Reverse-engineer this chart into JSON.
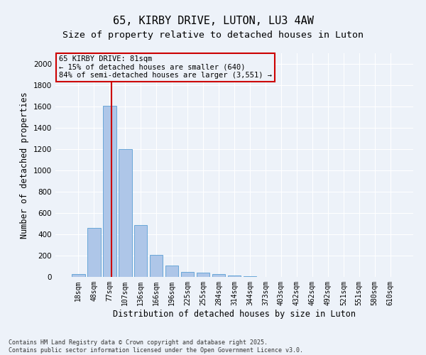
{
  "title1": "65, KIRBY DRIVE, LUTON, LU3 4AW",
  "title2": "Size of property relative to detached houses in Luton",
  "xlabel": "Distribution of detached houses by size in Luton",
  "ylabel": "Number of detached properties",
  "categories": [
    "18sqm",
    "48sqm",
    "77sqm",
    "107sqm",
    "136sqm",
    "166sqm",
    "196sqm",
    "225sqm",
    "255sqm",
    "284sqm",
    "314sqm",
    "344sqm",
    "373sqm",
    "403sqm",
    "432sqm",
    "462sqm",
    "492sqm",
    "521sqm",
    "551sqm",
    "580sqm",
    "610sqm"
  ],
  "values": [
    30,
    460,
    1610,
    1200,
    490,
    210,
    110,
    50,
    40,
    25,
    15,
    5,
    0,
    0,
    0,
    0,
    0,
    0,
    0,
    0,
    0
  ],
  "bar_color": "#aec6e8",
  "bar_edge_color": "#5a9fd4",
  "vline_color": "#cc0000",
  "annotation_text": "65 KIRBY DRIVE: 81sqm\n← 15% of detached houses are smaller (640)\n84% of semi-detached houses are larger (3,551) →",
  "annotation_box_color": "#cc0000",
  "ylim": [
    0,
    2100
  ],
  "yticks": [
    0,
    200,
    400,
    600,
    800,
    1000,
    1200,
    1400,
    1600,
    1800,
    2000
  ],
  "background_color": "#edf2f9",
  "footnote": "Contains HM Land Registry data © Crown copyright and database right 2025.\nContains public sector information licensed under the Open Government Licence v3.0.",
  "title_fontsize": 11,
  "subtitle_fontsize": 9.5,
  "axis_fontsize": 8.5,
  "tick_fontsize": 7,
  "footnote_fontsize": 6,
  "annotation_fontsize": 7.5
}
